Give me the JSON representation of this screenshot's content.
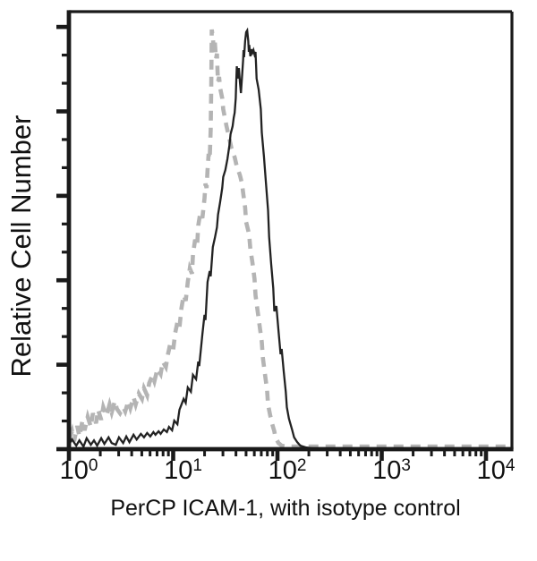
{
  "figure": {
    "kind": "flow-cytometry-histogram",
    "background_color": "#ffffff",
    "axis_color": "#1a1a1a",
    "text_color": "#111111"
  },
  "chart_data": {
    "type": "line",
    "title": "",
    "xlabel": "PerCP ICAM-1, with isotype control",
    "ylabel": "Relative Cell Number",
    "x_scale": "log10",
    "x_range_log10": [
      0,
      4.25
    ],
    "x_tick_base": "10",
    "x_tick_exponents": [
      "0",
      "1",
      "2",
      "3",
      "4"
    ],
    "x_minor_ticks": "log10(2..9) each decade",
    "y_range": [
      0,
      1
    ],
    "y_axis_numbers_shown": false,
    "y_major_tick_positions": [
      0,
      0.193,
      0.386,
      0.579,
      0.772,
      0.965
    ],
    "y_minor_divisions_between_majors": 3,
    "grid": false,
    "legend": "none",
    "series": [
      {
        "name": "Isotype control",
        "style": "dashed",
        "color": "#b4b4b4",
        "stroke_width": 4.6,
        "dash": [
          11,
          8
        ],
        "points": [
          [
            0.0,
            0.02
          ],
          [
            0.03,
            0.041
          ],
          [
            0.05,
            0.018
          ],
          [
            0.08,
            0.053
          ],
          [
            0.1,
            0.029
          ],
          [
            0.13,
            0.065
          ],
          [
            0.15,
            0.043
          ],
          [
            0.18,
            0.074
          ],
          [
            0.21,
            0.051
          ],
          [
            0.23,
            0.082
          ],
          [
            0.26,
            0.059
          ],
          [
            0.28,
            0.09
          ],
          [
            0.31,
            0.067
          ],
          [
            0.33,
            0.096
          ],
          [
            0.36,
            0.076
          ],
          [
            0.39,
            0.102
          ],
          [
            0.41,
            0.084
          ],
          [
            0.44,
            0.11
          ],
          [
            0.46,
            0.092
          ],
          [
            0.49,
            0.082
          ],
          [
            0.52,
            0.096
          ],
          [
            0.54,
            0.086
          ],
          [
            0.57,
            0.11
          ],
          [
            0.59,
            0.094
          ],
          [
            0.62,
            0.119
          ],
          [
            0.64,
            0.102
          ],
          [
            0.67,
            0.127
          ],
          [
            0.7,
            0.115
          ],
          [
            0.72,
            0.139
          ],
          [
            0.75,
            0.123
          ],
          [
            0.77,
            0.151
          ],
          [
            0.8,
            0.168
          ],
          [
            0.82,
            0.155
          ],
          [
            0.85,
            0.184
          ],
          [
            0.88,
            0.172
          ],
          [
            0.9,
            0.2
          ],
          [
            0.93,
            0.188
          ],
          [
            0.95,
            0.217
          ],
          [
            0.97,
            0.239
          ],
          [
            1.0,
            0.227
          ],
          [
            1.02,
            0.266
          ],
          [
            1.04,
            0.29
          ],
          [
            1.06,
            0.278
          ],
          [
            1.08,
            0.323
          ],
          [
            1.1,
            0.352
          ],
          [
            1.12,
            0.339
          ],
          [
            1.14,
            0.382
          ],
          [
            1.16,
            0.413
          ],
          [
            1.18,
            0.401
          ],
          [
            1.19,
            0.444
          ],
          [
            1.21,
            0.479
          ],
          [
            1.23,
            0.466
          ],
          [
            1.24,
            0.511
          ],
          [
            1.26,
            0.54
          ],
          [
            1.28,
            0.528
          ],
          [
            1.3,
            0.573
          ],
          [
            1.31,
            0.607
          ],
          [
            1.32,
            0.597
          ],
          [
            1.33,
            0.638
          ],
          [
            1.34,
            0.675
          ],
          [
            1.35,
            0.663
          ],
          [
            1.36,
            0.73
          ],
          [
            1.365,
            0.822
          ],
          [
            1.37,
            0.959
          ],
          [
            1.38,
            0.941
          ],
          [
            1.39,
            0.912
          ],
          [
            1.4,
            0.929
          ],
          [
            1.41,
            0.892
          ],
          [
            1.42,
            0.904
          ],
          [
            1.425,
            0.867
          ],
          [
            1.43,
            0.839
          ],
          [
            1.44,
            0.851
          ],
          [
            1.45,
            0.826
          ],
          [
            1.47,
            0.802
          ],
          [
            1.48,
            0.777
          ],
          [
            1.51,
            0.74
          ],
          [
            1.54,
            0.708
          ],
          [
            1.56,
            0.687
          ],
          [
            1.59,
            0.667
          ],
          [
            1.61,
            0.646
          ],
          [
            1.64,
            0.626
          ],
          [
            1.66,
            0.607
          ],
          [
            1.67,
            0.587
          ],
          [
            1.69,
            0.552
          ],
          [
            1.7,
            0.519
          ],
          [
            1.72,
            0.499
          ],
          [
            1.73,
            0.487
          ],
          [
            1.74,
            0.458
          ],
          [
            1.76,
            0.427
          ],
          [
            1.78,
            0.389
          ],
          [
            1.79,
            0.352
          ],
          [
            1.81,
            0.315
          ],
          [
            1.83,
            0.28
          ],
          [
            1.85,
            0.245
          ],
          [
            1.86,
            0.209
          ],
          [
            1.88,
            0.172
          ],
          [
            1.9,
            0.135
          ],
          [
            1.91,
            0.102
          ],
          [
            1.93,
            0.078
          ],
          [
            1.95,
            0.057
          ],
          [
            1.97,
            0.041
          ],
          [
            1.98,
            0.027
          ],
          [
            2.01,
            0.014
          ],
          [
            2.04,
            0.008
          ],
          [
            2.09,
            0.006
          ],
          [
            2.26,
            0.006
          ],
          [
            2.6,
            0.006
          ],
          [
            3.12,
            0.006
          ],
          [
            3.72,
            0.006
          ],
          [
            4.25,
            0.006
          ]
        ]
      },
      {
        "name": "PerCP ICAM-1",
        "style": "solid",
        "color": "#222222",
        "stroke_width": 2.3,
        "dash": null,
        "points": [
          [
            0.0,
            0.01
          ],
          [
            0.03,
            0.022
          ],
          [
            0.07,
            0.008
          ],
          [
            0.1,
            0.02
          ],
          [
            0.14,
            0.006
          ],
          [
            0.17,
            0.025
          ],
          [
            0.21,
            0.01
          ],
          [
            0.24,
            0.02
          ],
          [
            0.27,
            0.008
          ],
          [
            0.31,
            0.025
          ],
          [
            0.34,
            0.012
          ],
          [
            0.38,
            0.027
          ],
          [
            0.41,
            0.014
          ],
          [
            0.45,
            0.01
          ],
          [
            0.48,
            0.027
          ],
          [
            0.52,
            0.014
          ],
          [
            0.55,
            0.029
          ],
          [
            0.58,
            0.016
          ],
          [
            0.62,
            0.033
          ],
          [
            0.65,
            0.022
          ],
          [
            0.69,
            0.035
          ],
          [
            0.72,
            0.027
          ],
          [
            0.75,
            0.037
          ],
          [
            0.78,
            0.029
          ],
          [
            0.81,
            0.039
          ],
          [
            0.83,
            0.033
          ],
          [
            0.86,
            0.041
          ],
          [
            0.88,
            0.035
          ],
          [
            0.91,
            0.045
          ],
          [
            0.94,
            0.039
          ],
          [
            0.96,
            0.051
          ],
          [
            0.99,
            0.043
          ],
          [
            1.01,
            0.065
          ],
          [
            1.04,
            0.057
          ],
          [
            1.06,
            0.09
          ],
          [
            1.08,
            0.102
          ],
          [
            1.1,
            0.115
          ],
          [
            1.12,
            0.106
          ],
          [
            1.14,
            0.141
          ],
          [
            1.17,
            0.131
          ],
          [
            1.19,
            0.17
          ],
          [
            1.22,
            0.16
          ],
          [
            1.24,
            0.2
          ],
          [
            1.25,
            0.19
          ],
          [
            1.28,
            0.262
          ],
          [
            1.3,
            0.307
          ],
          [
            1.31,
            0.295
          ],
          [
            1.33,
            0.382
          ],
          [
            1.35,
            0.407
          ],
          [
            1.36,
            0.395
          ],
          [
            1.38,
            0.462
          ],
          [
            1.4,
            0.483
          ],
          [
            1.42,
            0.507
          ],
          [
            1.43,
            0.536
          ],
          [
            1.45,
            0.564
          ],
          [
            1.47,
            0.597
          ],
          [
            1.48,
            0.622
          ],
          [
            1.5,
            0.638
          ],
          [
            1.52,
            0.663
          ],
          [
            1.54,
            0.695
          ],
          [
            1.55,
            0.72
          ],
          [
            1.57,
            0.738
          ],
          [
            1.58,
            0.757
          ],
          [
            1.59,
            0.769
          ],
          [
            1.6,
            0.802
          ],
          [
            1.605,
            0.843
          ],
          [
            1.61,
            0.875
          ],
          [
            1.62,
            0.847
          ],
          [
            1.63,
            0.871
          ],
          [
            1.64,
            0.838
          ],
          [
            1.65,
            0.814
          ],
          [
            1.66,
            0.851
          ],
          [
            1.67,
            0.888
          ],
          [
            1.675,
            0.912
          ],
          [
            1.68,
            0.896
          ],
          [
            1.69,
            0.933
          ],
          [
            1.7,
            0.953
          ],
          [
            1.71,
            0.957
          ],
          [
            1.72,
            0.933
          ],
          [
            1.725,
            0.908
          ],
          [
            1.73,
            0.924
          ],
          [
            1.74,
            0.898
          ],
          [
            1.75,
            0.914
          ],
          [
            1.76,
            0.906
          ],
          [
            1.77,
            0.912
          ],
          [
            1.78,
            0.902
          ],
          [
            1.79,
            0.908
          ],
          [
            1.795,
            0.879
          ],
          [
            1.8,
            0.847
          ],
          [
            1.82,
            0.822
          ],
          [
            1.84,
            0.777
          ],
          [
            1.85,
            0.724
          ],
          [
            1.87,
            0.669
          ],
          [
            1.89,
            0.607
          ],
          [
            1.91,
            0.546
          ],
          [
            1.92,
            0.485
          ],
          [
            1.94,
            0.423
          ],
          [
            1.96,
            0.368
          ],
          [
            1.97,
            0.315
          ],
          [
            1.99,
            0.327
          ],
          [
            2.01,
            0.27
          ],
          [
            2.03,
            0.217
          ],
          [
            2.04,
            0.229
          ],
          [
            2.06,
            0.178
          ],
          [
            2.08,
            0.131
          ],
          [
            2.09,
            0.096
          ],
          [
            2.11,
            0.07
          ],
          [
            2.14,
            0.045
          ],
          [
            2.16,
            0.027
          ],
          [
            2.19,
            0.016
          ],
          [
            2.22,
            0.008
          ],
          [
            2.27,
            0.004
          ],
          [
            2.34,
            0.002
          ],
          [
            2.6,
            0.002
          ],
          [
            3.03,
            0.002
          ],
          [
            3.63,
            0.002
          ],
          [
            4.25,
            0.002
          ]
        ]
      }
    ]
  }
}
